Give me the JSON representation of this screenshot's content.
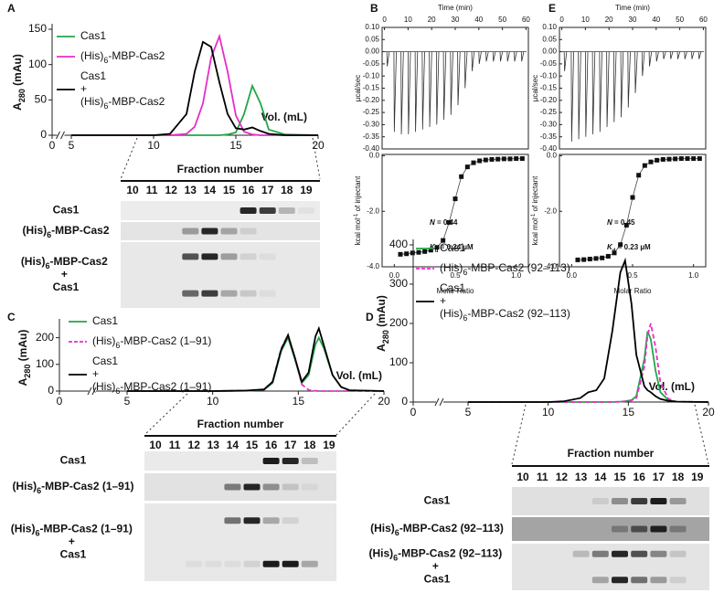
{
  "panel_labels": [
    "A",
    "B",
    "E",
    "C",
    "D"
  ],
  "chart_data": [
    {
      "type": "line",
      "ylabel": "A280 (mAu)",
      "x_annotation": "Vol. (mL)",
      "legend": "upper left",
      "axis_break": true,
      "x": [
        5,
        8,
        10,
        11,
        12,
        12.5,
        13,
        13.5,
        14,
        14.5,
        15,
        15.5,
        16,
        16.5,
        17,
        18,
        20
      ],
      "series": [
        {
          "name": "Cas1",
          "color": "#22a64a",
          "values": [
            0,
            0,
            0,
            0,
            0,
            0,
            0,
            0,
            0,
            1,
            4,
            30,
            70,
            45,
            8,
            1,
            0
          ]
        },
        {
          "name": "(His)6-MBP-Cas2",
          "color": "#e62ec8",
          "values": [
            0,
            0,
            0,
            0,
            2,
            12,
            45,
            110,
            140,
            90,
            28,
            5,
            1,
            0,
            0,
            0,
            0
          ]
        },
        {
          "name": "Cas1 + (His)6-MBP-Cas2",
          "color": "#000000",
          "values": [
            0,
            0,
            0,
            2,
            30,
            90,
            132,
            125,
            75,
            30,
            10,
            8,
            11,
            6,
            2,
            0,
            0
          ]
        }
      ],
      "xlim": [
        0,
        20
      ],
      "xticks": [
        0,
        5,
        10,
        15,
        20
      ],
      "ylim": [
        0,
        150
      ],
      "yticks": [
        0,
        50,
        100,
        150
      ]
    },
    {
      "type": "itc_raw",
      "xlabel": "Time (min)",
      "ylabel": "µcal/sec",
      "color": "#333333",
      "x": [
        1,
        4,
        7,
        10,
        13,
        16,
        19,
        22,
        25,
        28,
        31,
        34,
        37,
        40,
        43,
        46,
        49,
        52,
        55,
        58
      ],
      "values": [
        -0.06,
        -0.33,
        -0.34,
        -0.34,
        -0.33,
        -0.32,
        -0.31,
        -0.3,
        -0.28,
        -0.26,
        -0.22,
        -0.15,
        -0.08,
        -0.05,
        -0.04,
        -0.04,
        -0.04,
        -0.04,
        -0.04,
        -0.04
      ],
      "xlim": [
        -1,
        61
      ],
      "xticks": [
        0,
        10,
        20,
        30,
        40,
        50,
        60
      ],
      "ylim": [
        -0.4,
        0.1
      ],
      "yticks": [
        {
          "value": 0.1,
          "label": "0.10"
        },
        {
          "value": 0.05,
          "label": "0.05"
        },
        {
          "value": 0,
          "label": "0.00"
        },
        {
          "value": -0.05,
          "label": "-0.05"
        },
        {
          "value": -0.1,
          "label": "-0.10"
        },
        {
          "value": -0.15,
          "label": "-0.15"
        },
        {
          "value": -0.2,
          "label": "-0.20"
        },
        {
          "value": -0.25,
          "label": "-0.25"
        },
        {
          "value": -0.3,
          "label": "-0.30"
        },
        {
          "value": -0.35,
          "label": "-0.35"
        },
        {
          "value": -0.4,
          "label": "-0.40"
        }
      ]
    },
    {
      "type": "scatter",
      "xlabel": "Molar Ratio",
      "ylabel": "kcal mol-1 of injectant",
      "color": "#111111",
      "x": [
        0.05,
        0.1,
        0.15,
        0.2,
        0.25,
        0.3,
        0.35,
        0.4,
        0.45,
        0.5,
        0.55,
        0.6,
        0.65,
        0.7,
        0.75,
        0.8,
        0.85,
        0.9,
        0.95,
        1,
        1.05
      ],
      "values": [
        -3.55,
        -3.53,
        -3.5,
        -3.48,
        -3.45,
        -3.4,
        -3.3,
        -3.05,
        -2.4,
        -1.55,
        -0.75,
        -0.4,
        -0.25,
        -0.18,
        -0.15,
        -0.13,
        -0.12,
        -0.11,
        -0.11,
        -0.1,
        -0.1
      ],
      "annotations": [
        "N = 0.44",
        "Kd = 0.24 µM"
      ],
      "xlim": [
        -0.1,
        1.1
      ],
      "xticks": [
        {
          "value": 0,
          "label": "0.0"
        },
        {
          "value": 0.5,
          "label": "0.5"
        },
        {
          "value": 1,
          "label": "1.0"
        }
      ],
      "ylim": [
        -4,
        0.05
      ],
      "yticks": [
        {
          "value": 0,
          "label": "0.0"
        },
        {
          "value": -2,
          "label": "-2.0"
        },
        {
          "value": -4,
          "label": "-4.0"
        }
      ]
    },
    {
      "type": "itc_raw",
      "xlabel": "Time (min)",
      "ylabel": "µcal/sec",
      "color": "#333333",
      "x": [
        1,
        4,
        7,
        10,
        13,
        16,
        19,
        22,
        25,
        28,
        31,
        34,
        37,
        40,
        43,
        46,
        49,
        52,
        55,
        58
      ],
      "values": [
        -0.08,
        -0.37,
        -0.36,
        -0.35,
        -0.34,
        -0.33,
        -0.31,
        -0.29,
        -0.27,
        -0.23,
        -0.17,
        -0.1,
        -0.06,
        -0.04,
        -0.03,
        -0.03,
        -0.03,
        -0.03,
        -0.03,
        -0.03
      ],
      "xlim": [
        -1,
        61
      ],
      "xticks": [
        0,
        10,
        20,
        30,
        40,
        50,
        60
      ],
      "ylim": [
        -0.4,
        0.1
      ],
      "yticks": [
        {
          "value": 0.1,
          "label": "0.10"
        },
        {
          "value": 0.05,
          "label": "0.05"
        },
        {
          "value": 0,
          "label": "0.00"
        },
        {
          "value": -0.05,
          "label": "-0.05"
        },
        {
          "value": -0.1,
          "label": "-0.10"
        },
        {
          "value": -0.15,
          "label": "-0.15"
        },
        {
          "value": -0.2,
          "label": "-0.20"
        },
        {
          "value": -0.25,
          "label": "-0.25"
        },
        {
          "value": -0.3,
          "label": "-0.30"
        },
        {
          "value": -0.35,
          "label": "-0.35"
        },
        {
          "value": -0.4,
          "label": "-0.40"
        }
      ]
    },
    {
      "type": "scatter",
      "xlabel": "Molar Ratio",
      "ylabel": "kcal mol-1 of injectant",
      "color": "#111111",
      "x": [
        0.05,
        0.1,
        0.15,
        0.2,
        0.25,
        0.3,
        0.35,
        0.4,
        0.45,
        0.5,
        0.55,
        0.6,
        0.65,
        0.7,
        0.75,
        0.8,
        0.85,
        0.9,
        0.95,
        1,
        1.05
      ],
      "values": [
        -3.75,
        -3.74,
        -3.72,
        -3.7,
        -3.68,
        -3.62,
        -3.5,
        -3.2,
        -2.5,
        -1.5,
        -0.7,
        -0.35,
        -0.22,
        -0.16,
        -0.13,
        -0.12,
        -0.11,
        -0.1,
        -0.1,
        -0.1,
        -0.1
      ],
      "annotations": [
        "N = 0.45",
        "Kd = 0.23 µM"
      ],
      "xlim": [
        -0.1,
        1.1
      ],
      "xticks": [
        {
          "value": 0,
          "label": "0.0"
        },
        {
          "value": 0.5,
          "label": "0.5"
        },
        {
          "value": 1,
          "label": "1.0"
        }
      ],
      "ylim": [
        -4,
        0.05
      ],
      "yticks": [
        {
          "value": 0,
          "label": "0.0"
        },
        {
          "value": -2,
          "label": "-2.0"
        },
        {
          "value": -4,
          "label": "-4.0"
        }
      ]
    },
    {
      "type": "line",
      "ylabel": "A280 (mAu)",
      "x_annotation": "Vol. (mL)",
      "legend": "upper left",
      "axis_break": true,
      "x": [
        5,
        8,
        10,
        11,
        12,
        13,
        13.5,
        14,
        14.4,
        14.8,
        15.2,
        15.6,
        16,
        16.2,
        16.5,
        17,
        17.5,
        18,
        20
      ],
      "series": [
        {
          "name": "Cas1",
          "color": "#22a64a",
          "values": [
            0,
            0,
            0,
            0,
            1,
            5,
            30,
            150,
            200,
            120,
            30,
            60,
            175,
            200,
            160,
            60,
            15,
            3,
            0
          ]
        },
        {
          "name": "(His)6-MBP-Cas2 (1–91)",
          "color": "#e62ec8",
          "dash": true,
          "values": [
            0,
            0,
            0,
            1,
            2,
            6,
            35,
            160,
            210,
            125,
            25,
            4,
            1,
            0,
            0,
            0,
            0,
            0,
            0
          ]
        },
        {
          "name": "Cas1 + (His)6-MBP-Cas2 (1–91)",
          "color": "#000000",
          "values": [
            0,
            0,
            0,
            1,
            2,
            6,
            35,
            155,
            210,
            125,
            35,
            70,
            205,
            235,
            170,
            60,
            15,
            3,
            0
          ]
        }
      ],
      "xlim": [
        0,
        20
      ],
      "xticks": [
        0,
        5,
        10,
        15,
        20
      ],
      "ylim": [
        0,
        250
      ],
      "yticks": [
        0,
        100,
        200
      ]
    },
    {
      "type": "line",
      "ylabel": "A280 (mAu)",
      "x_annotation": "Vol. (mL)",
      "legend": "upper left",
      "axis_break": true,
      "x": [
        5,
        8,
        10,
        11,
        12,
        12.5,
        13,
        13.5,
        14,
        14.5,
        14.8,
        15.2,
        15.5,
        16,
        16.2,
        16.4,
        16.7,
        17,
        17.5,
        18,
        20
      ],
      "series": [
        {
          "name": "Cas1",
          "color": "#22a64a",
          "values": [
            0,
            0,
            0,
            0,
            0,
            0,
            0,
            0,
            0,
            1,
            2,
            5,
            15,
            110,
            180,
            160,
            80,
            25,
            5,
            1,
            0
          ]
        },
        {
          "name": "(His)6-MBP-Cas2 (92–113)",
          "color": "#e62ec8",
          "dash": true,
          "values": [
            0,
            0,
            0,
            0,
            0,
            0,
            0,
            0,
            0,
            1,
            2,
            4,
            10,
            90,
            170,
            200,
            140,
            50,
            8,
            1,
            0
          ]
        },
        {
          "name": "Cas1 + (His)6-MBP-Cas2 (92–113)",
          "color": "#000000",
          "values": [
            0,
            0,
            0,
            2,
            10,
            25,
            30,
            60,
            180,
            330,
            360,
            250,
            120,
            40,
            30,
            25,
            15,
            8,
            3,
            1,
            0
          ]
        }
      ],
      "xlim": [
        0,
        20
      ],
      "xticks": [
        0,
        5,
        10,
        15,
        20
      ],
      "ylim": [
        0,
        400
      ],
      "yticks": [
        0,
        100,
        200,
        300,
        400
      ]
    }
  ],
  "gels": [
    {
      "title": "Fraction number",
      "lanes": [
        10,
        11,
        12,
        13,
        14,
        15,
        16,
        17,
        18,
        19
      ],
      "rows": [
        {
          "label": "Cas1",
          "color": "#22a64a",
          "bands": [
            [
              0,
              0,
              0,
              0,
              0,
              0,
              0.9,
              0.8,
              0.25,
              0.05
            ]
          ]
        },
        {
          "label": "(His)6-MBP-Cas2",
          "color": "#e62ec8",
          "bands": [
            [
              0,
              0,
              0,
              0.35,
              0.9,
              0.3,
              0.1,
              0,
              0,
              0
            ]
          ]
        },
        {
          "label": "(His)6-MBP-Cas2 + Cas1",
          "color": "#111111",
          "bands": [
            [
              0,
              0,
              0,
              0.7,
              0.9,
              0.35,
              0.1,
              0.05,
              0,
              0
            ],
            [
              0,
              0,
              0,
              0.6,
              0.8,
              0.3,
              0.15,
              0.05,
              0,
              0
            ]
          ]
        }
      ]
    },
    {
      "title": "Fraction number",
      "lanes": [
        10,
        11,
        12,
        13,
        14,
        15,
        16,
        17,
        18,
        19
      ],
      "rows": [
        {
          "label": "Cas1",
          "color": "#22a64a",
          "bands": [
            [
              0,
              0,
              0,
              0,
              0,
              0,
              0.95,
              0.9,
              0.2,
              0
            ]
          ]
        },
        {
          "label": "(His)6-MBP-Cas2 (1–91)",
          "color": "#e62ec8",
          "bands": [
            [
              0,
              0,
              0,
              0,
              0.5,
              0.9,
              0.4,
              0.15,
              0.05,
              0
            ]
          ]
        },
        {
          "label": "(His)6-MBP-Cas2 (1–91) + Cas1",
          "color": "#111111",
          "bands": [
            [
              0,
              0,
              0,
              0,
              0.55,
              0.9,
              0.3,
              0.1,
              0,
              0
            ],
            [
              0,
              0,
              0.05,
              0.05,
              0.05,
              0.1,
              0.95,
              0.95,
              0.3,
              0
            ]
          ]
        }
      ]
    },
    {
      "title": "Fraction number",
      "lanes": [
        10,
        11,
        12,
        13,
        14,
        15,
        16,
        17,
        18,
        19
      ],
      "rows": [
        {
          "label": "Cas1",
          "color": "#22a64a",
          "bands": [
            [
              0,
              0,
              0,
              0,
              0.1,
              0.4,
              0.8,
              0.95,
              0.35,
              0
            ]
          ]
        },
        {
          "label": "(His)6-MBP-Cas2 (92–113)",
          "color": "#e62ec8",
          "bands": [
            [
              0,
              0,
              0,
              0,
              0,
              0.3,
              0.6,
              0.9,
              0.3,
              0
            ]
          ]
        },
        {
          "label": "(His)6-MBP-Cas2 (92–113) + Cas1",
          "color": "#111111",
          "bands": [
            [
              0,
              0,
              0,
              0.2,
              0.5,
              0.9,
              0.7,
              0.45,
              0.15,
              0
            ],
            [
              0,
              0,
              0,
              0,
              0.3,
              0.9,
              0.55,
              0.35,
              0.1,
              0
            ]
          ]
        }
      ]
    }
  ]
}
